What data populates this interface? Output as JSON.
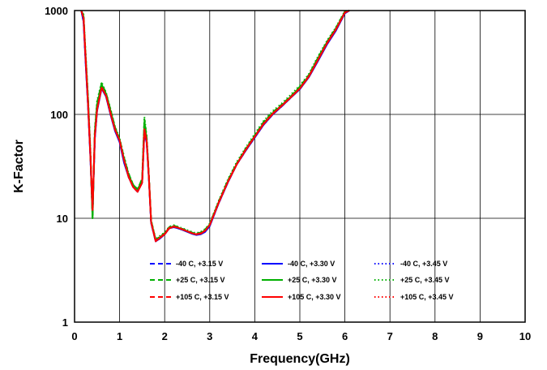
{
  "chart_data": {
    "type": "line",
    "title": "",
    "xlabel": "Frequency(GHz)",
    "ylabel": "K-Factor",
    "xlim": [
      0,
      10
    ],
    "ylim": [
      1,
      1000
    ],
    "y_scale": "log",
    "grid": true,
    "x_ticks": [
      "0",
      "1",
      "2",
      "3",
      "4",
      "5",
      "6",
      "7",
      "8",
      "9",
      "10"
    ],
    "y_ticks": [
      "1",
      "10",
      "100",
      "1000"
    ],
    "legend_position": "bottom-center",
    "x": [
      0.15,
      0.2,
      0.25,
      0.3,
      0.35,
      0.4,
      0.45,
      0.5,
      0.6,
      0.7,
      0.8,
      0.9,
      1.0,
      1.1,
      1.2,
      1.3,
      1.4,
      1.5,
      1.55,
      1.6,
      1.65,
      1.7,
      1.8,
      1.9,
      2.0,
      2.1,
      2.2,
      2.3,
      2.4,
      2.5,
      2.6,
      2.7,
      2.8,
      2.9,
      3.0,
      3.2,
      3.4,
      3.6,
      3.8,
      4.0,
      4.2,
      4.4,
      4.6,
      4.8,
      5.0,
      5.2,
      5.4,
      5.6,
      5.8,
      6.0,
      6.1
    ],
    "series": [
      {
        "name": "-40 C, +3.15 V",
        "color": "#0000ff",
        "dash": "dashed",
        "values": [
          1000,
          800,
          300,
          120,
          40,
          11,
          60,
          110,
          180,
          150,
          100,
          70,
          55,
          35,
          25,
          20,
          18,
          22,
          70,
          55,
          25,
          9,
          6,
          6.5,
          7,
          8,
          8.3,
          8,
          7.8,
          7.5,
          7.2,
          7,
          7.1,
          7.5,
          8.5,
          14,
          22,
          33,
          45,
          60,
          80,
          100,
          120,
          145,
          175,
          230,
          330,
          480,
          650,
          950,
          1000
        ]
      },
      {
        "name": "-40 C, +3.30 V",
        "color": "#0000ff",
        "dash": "solid",
        "values": [
          1000,
          780,
          290,
          118,
          39,
          11,
          58,
          108,
          178,
          148,
          99,
          69,
          54,
          34,
          25,
          20,
          18,
          22,
          68,
          53,
          24,
          9,
          6,
          6.4,
          7,
          8,
          8.2,
          8,
          7.7,
          7.4,
          7.1,
          6.9,
          7,
          7.4,
          8.4,
          14,
          22,
          33,
          45,
          60,
          80,
          100,
          120,
          145,
          175,
          228,
          325,
          470,
          640,
          940,
          1000
        ]
      },
      {
        "name": "-40 C, +3.45 V",
        "color": "#0000ff",
        "dash": "dotted",
        "values": [
          1000,
          790,
          295,
          119,
          40,
          11,
          59,
          109,
          179,
          149,
          99,
          70,
          55,
          35,
          25,
          20,
          18,
          22,
          69,
          54,
          25,
          9,
          6,
          6.4,
          7,
          8,
          8.3,
          8,
          7.8,
          7.5,
          7.2,
          7,
          7.1,
          7.5,
          8.5,
          14,
          22,
          33,
          45,
          60,
          80,
          100,
          120,
          145,
          175,
          230,
          328,
          475,
          645,
          945,
          1000
        ]
      },
      {
        "name": "+25 C, +3.15 V",
        "color": "#00b000",
        "dash": "dashed",
        "values": [
          1000,
          900,
          350,
          140,
          45,
          10,
          70,
          130,
          200,
          160,
          110,
          75,
          58,
          38,
          27,
          21,
          19,
          24,
          90,
          60,
          26,
          9.5,
          6.2,
          6.7,
          7.2,
          8.2,
          8.5,
          8.2,
          7.9,
          7.6,
          7.3,
          7.1,
          7.3,
          7.8,
          8.8,
          14.5,
          23,
          34,
          47,
          63,
          85,
          105,
          125,
          150,
          185,
          240,
          350,
          500,
          680,
          980,
          1000
        ]
      },
      {
        "name": "+25 C, +3.30 V",
        "color": "#00b000",
        "dash": "solid",
        "values": [
          1000,
          880,
          340,
          135,
          44,
          10,
          68,
          125,
          195,
          158,
          108,
          74,
          57,
          37,
          26,
          21,
          19,
          23,
          85,
          58,
          25,
          9.4,
          6.1,
          6.6,
          7.1,
          8.1,
          8.4,
          8.1,
          7.8,
          7.5,
          7.2,
          7,
          7.2,
          7.7,
          8.7,
          14.3,
          22.5,
          33.5,
          46,
          62,
          83,
          103,
          123,
          148,
          182,
          236,
          345,
          495,
          670,
          970,
          1000
        ]
      },
      {
        "name": "+25 C, +3.45 V",
        "color": "#00b000",
        "dash": "dotted",
        "values": [
          1000,
          920,
          360,
          145,
          46,
          10,
          72,
          135,
          205,
          162,
          112,
          76,
          59,
          39,
          27,
          21,
          19,
          24,
          95,
          62,
          26,
          9.6,
          6.3,
          6.8,
          7.3,
          8.3,
          8.6,
          8.3,
          8,
          7.7,
          7.4,
          7.2,
          7.4,
          7.9,
          8.9,
          14.8,
          23.5,
          35,
          48,
          65,
          87,
          108,
          128,
          155,
          190,
          245,
          360,
          510,
          690,
          990,
          1000
        ]
      },
      {
        "name": "+105 C, +3.15 V",
        "color": "#ff0000",
        "dash": "dashed",
        "values": [
          1000,
          850,
          320,
          125,
          42,
          12,
          62,
          112,
          182,
          152,
          102,
          71,
          56,
          36,
          25,
          20,
          18,
          22,
          72,
          56,
          25,
          9.2,
          6.1,
          6.5,
          7.1,
          8.1,
          8.3,
          8.1,
          7.8,
          7.5,
          7.2,
          7,
          7.2,
          7.6,
          8.6,
          14.2,
          22.3,
          33.2,
          46,
          61,
          82,
          102,
          122,
          147,
          178,
          233,
          335,
          485,
          660,
          960,
          1000
        ]
      },
      {
        "name": "+105 C, +3.30 V",
        "color": "#ff0000",
        "dash": "solid",
        "values": [
          1000,
          840,
          315,
          122,
          41,
          12,
          61,
          111,
          181,
          151,
          101,
          71,
          56,
          36,
          25,
          20,
          18,
          22,
          71,
          55,
          25,
          9.1,
          6,
          6.5,
          7,
          8,
          8.3,
          8.1,
          7.8,
          7.5,
          7.2,
          7,
          7.1,
          7.6,
          8.6,
          14.1,
          22.2,
          33.1,
          45.5,
          61,
          81,
          101,
          121,
          146,
          177,
          231,
          332,
          480,
          655,
          955,
          1000
        ]
      },
      {
        "name": "+105 C, +3.45 V",
        "color": "#ff0000",
        "dash": "dotted",
        "values": [
          1000,
          860,
          325,
          127,
          42,
          12,
          63,
          113,
          183,
          153,
          103,
          72,
          56,
          36,
          26,
          20,
          18,
          22,
          73,
          56,
          25,
          9.2,
          6.1,
          6.6,
          7.1,
          8.1,
          8.4,
          8.1,
          7.8,
          7.5,
          7.2,
          7,
          7.2,
          7.6,
          8.6,
          14.3,
          22.4,
          33.4,
          46.2,
          61.5,
          82.5,
          102.5,
          122.5,
          147.5,
          179,
          234,
          337,
          488,
          662,
          962,
          1000
        ]
      }
    ]
  }
}
